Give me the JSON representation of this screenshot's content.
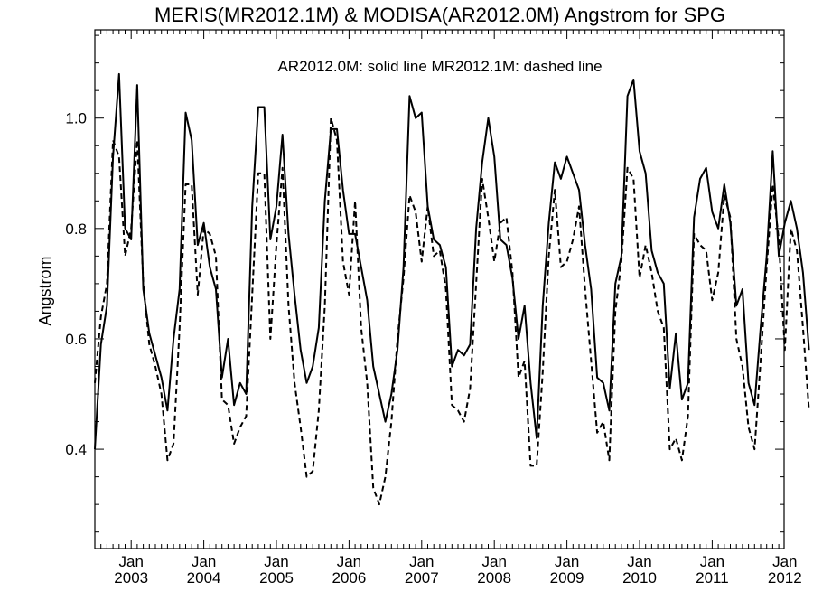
{
  "chart_data": {
    "type": "line",
    "title": "MERIS(MR2012.1M) & MODISA(AR2012.0M)  Angstrom for SPG",
    "annotation": "AR2012.0M: solid line   MR2012.1M: dashed line",
    "ylabel": "Angstrom",
    "xlabel": "",
    "ylim": [
      0.22,
      1.16
    ],
    "y_ticks": [
      "0.4",
      "0.6",
      "0.8",
      "1.0"
    ],
    "x_ticks": [
      {
        "month": "Jan",
        "year": "2003"
      },
      {
        "month": "Jan",
        "year": "2004"
      },
      {
        "month": "Jan",
        "year": "2005"
      },
      {
        "month": "Jan",
        "year": "2006"
      },
      {
        "month": "Jan",
        "year": "2007"
      },
      {
        "month": "Jan",
        "year": "2008"
      },
      {
        "month": "Jan",
        "year": "2009"
      },
      {
        "month": "Jan",
        "year": "2010"
      },
      {
        "month": "Jan",
        "year": "2011"
      },
      {
        "month": "Jan",
        "year": "2012"
      }
    ],
    "x_start": "2002-07",
    "grid": false,
    "series": [
      {
        "name": "AR2012.0M",
        "style": "solid",
        "color": "#000000",
        "values": [
          0.4,
          0.59,
          0.66,
          0.93,
          1.08,
          0.8,
          0.78,
          1.06,
          0.69,
          0.61,
          0.57,
          0.53,
          0.47,
          0.6,
          0.69,
          1.01,
          0.96,
          0.77,
          0.81,
          0.73,
          0.69,
          0.53,
          0.6,
          0.48,
          0.52,
          0.5,
          0.84,
          1.02,
          1.02,
          0.78,
          0.84,
          0.97,
          0.79,
          0.68,
          0.58,
          0.52,
          0.55,
          0.62,
          0.85,
          0.98,
          0.98,
          0.87,
          0.79,
          0.79,
          0.73,
          0.67,
          0.55,
          0.5,
          0.45,
          0.5,
          0.58,
          0.73,
          1.04,
          1.0,
          1.01,
          0.84,
          0.78,
          0.77,
          0.73,
          0.55,
          0.58,
          0.57,
          0.59,
          0.8,
          0.92,
          1.0,
          0.93,
          0.78,
          0.77,
          0.71,
          0.6,
          0.66,
          0.52,
          0.42,
          0.66,
          0.81,
          0.92,
          0.89,
          0.93,
          0.9,
          0.87,
          0.77,
          0.69,
          0.53,
          0.52,
          0.47,
          0.7,
          0.75,
          1.04,
          1.07,
          0.94,
          0.9,
          0.76,
          0.72,
          0.7,
          0.51,
          0.61,
          0.49,
          0.52,
          0.82,
          0.89,
          0.91,
          0.83,
          0.8,
          0.88,
          0.81,
          0.66,
          0.69,
          0.52,
          0.48,
          0.62,
          0.75,
          0.94,
          0.75,
          0.81,
          0.85,
          0.8,
          0.72,
          0.58
        ]
      },
      {
        "name": "MR2012.1M",
        "style": "dashed",
        "color": "#000000",
        "values": [
          0.52,
          0.64,
          0.7,
          0.96,
          0.93,
          0.75,
          0.8,
          0.96,
          0.7,
          0.59,
          0.55,
          0.5,
          0.38,
          0.41,
          0.62,
          0.88,
          0.88,
          0.68,
          0.8,
          0.79,
          0.75,
          0.49,
          0.48,
          0.41,
          0.44,
          0.46,
          0.68,
          0.9,
          0.9,
          0.6,
          0.77,
          0.91,
          0.66,
          0.52,
          0.44,
          0.35,
          0.36,
          0.47,
          0.66,
          1.0,
          0.96,
          0.74,
          0.68,
          0.85,
          0.62,
          0.52,
          0.33,
          0.3,
          0.35,
          0.45,
          0.6,
          0.71,
          0.86,
          0.83,
          0.74,
          0.84,
          0.75,
          0.76,
          0.69,
          0.48,
          0.47,
          0.45,
          0.51,
          0.7,
          0.89,
          0.82,
          0.74,
          0.81,
          0.82,
          0.72,
          0.53,
          0.56,
          0.37,
          0.37,
          0.54,
          0.75,
          0.87,
          0.73,
          0.74,
          0.78,
          0.84,
          0.69,
          0.56,
          0.43,
          0.45,
          0.38,
          0.65,
          0.74,
          0.91,
          0.89,
          0.71,
          0.77,
          0.72,
          0.65,
          0.62,
          0.4,
          0.42,
          0.38,
          0.46,
          0.79,
          0.77,
          0.76,
          0.67,
          0.72,
          0.86,
          0.82,
          0.6,
          0.55,
          0.44,
          0.4,
          0.56,
          0.73,
          0.88,
          0.78,
          0.58,
          0.8,
          0.76,
          0.62,
          0.47
        ]
      }
    ]
  }
}
